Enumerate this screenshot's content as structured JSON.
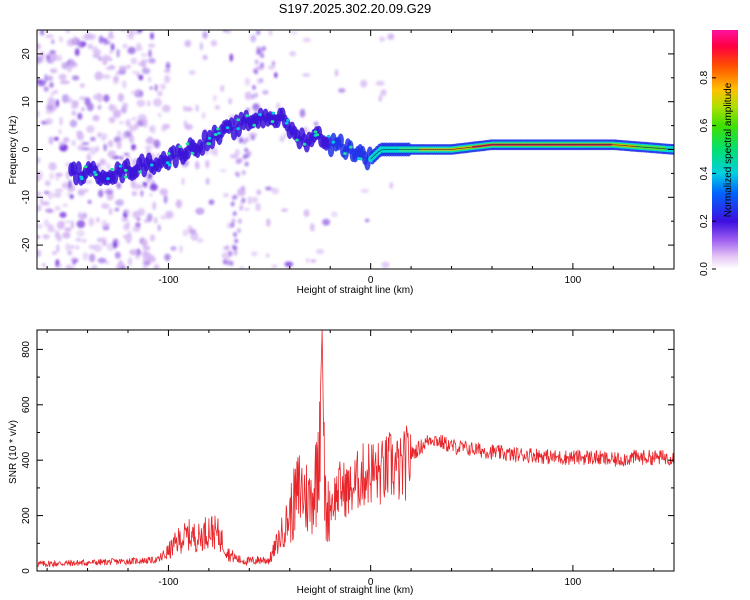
{
  "chart_data": [
    {
      "type": "heatmap",
      "title": "S197.2025.302.20.09.G29",
      "xlabel": "Height of straight line (km)",
      "ylabel": "Frequency (Hz)",
      "xlim": [
        -165,
        150
      ],
      "ylim": [
        -25,
        25
      ],
      "xticks": [
        -100,
        0,
        100
      ],
      "yticks": [
        -20,
        -10,
        0,
        10,
        20
      ],
      "colorbar": {
        "label": "Normalized spectral amplitude",
        "ticks": [
          0.0,
          0.2,
          0.4,
          0.6,
          0.8
        ],
        "range": [
          0,
          1
        ]
      },
      "ridge": {
        "x": [
          -145,
          -125,
          -110,
          -100,
          -90,
          -80,
          -70,
          -60,
          -50,
          -42,
          -38,
          -32,
          -25,
          -20,
          -15,
          -10,
          -5,
          0,
          5,
          10,
          20,
          40,
          60,
          80,
          100,
          120,
          150
        ],
        "y": [
          -5,
          -5,
          -3,
          -2,
          0,
          2,
          4,
          6,
          7,
          6,
          3,
          2,
          3,
          1,
          1,
          0,
          -1,
          -2,
          0,
          0,
          0,
          0,
          1,
          1,
          1,
          1,
          0
        ]
      }
    },
    {
      "type": "line",
      "title": "",
      "xlabel": "Height of straight line (km)",
      "ylabel": "SNR (10 * v/v)",
      "xlim": [
        -165,
        150
      ],
      "ylim": [
        0,
        870
      ],
      "xticks": [
        -100,
        0,
        100
      ],
      "yticks": [
        0,
        200,
        400,
        600,
        800
      ],
      "color": "#e8252a",
      "series": [
        {
          "name": "SNR",
          "x": [
            -165,
            -140,
            -120,
            -105,
            -100,
            -95,
            -90,
            -85,
            -80,
            -75,
            -70,
            -65,
            -60,
            -55,
            -50,
            -45,
            -40,
            -35,
            -30,
            -27,
            -25,
            -24,
            -23,
            -22,
            -20,
            -15,
            -10,
            -5,
            0,
            5,
            10,
            15,
            20,
            25,
            30,
            40,
            50,
            60,
            70,
            80,
            90,
            100,
            110,
            120,
            130,
            140,
            150
          ],
          "values": [
            25,
            30,
            35,
            40,
            70,
            110,
            130,
            120,
            150,
            130,
            60,
            40,
            35,
            40,
            40,
            120,
            200,
            300,
            250,
            330,
            600,
            870,
            360,
            200,
            240,
            300,
            290,
            340,
            360,
            350,
            380,
            360,
            420,
            450,
            480,
            450,
            440,
            430,
            420,
            420,
            410,
            410,
            410,
            400,
            410,
            410,
            410
          ]
        }
      ]
    }
  ]
}
